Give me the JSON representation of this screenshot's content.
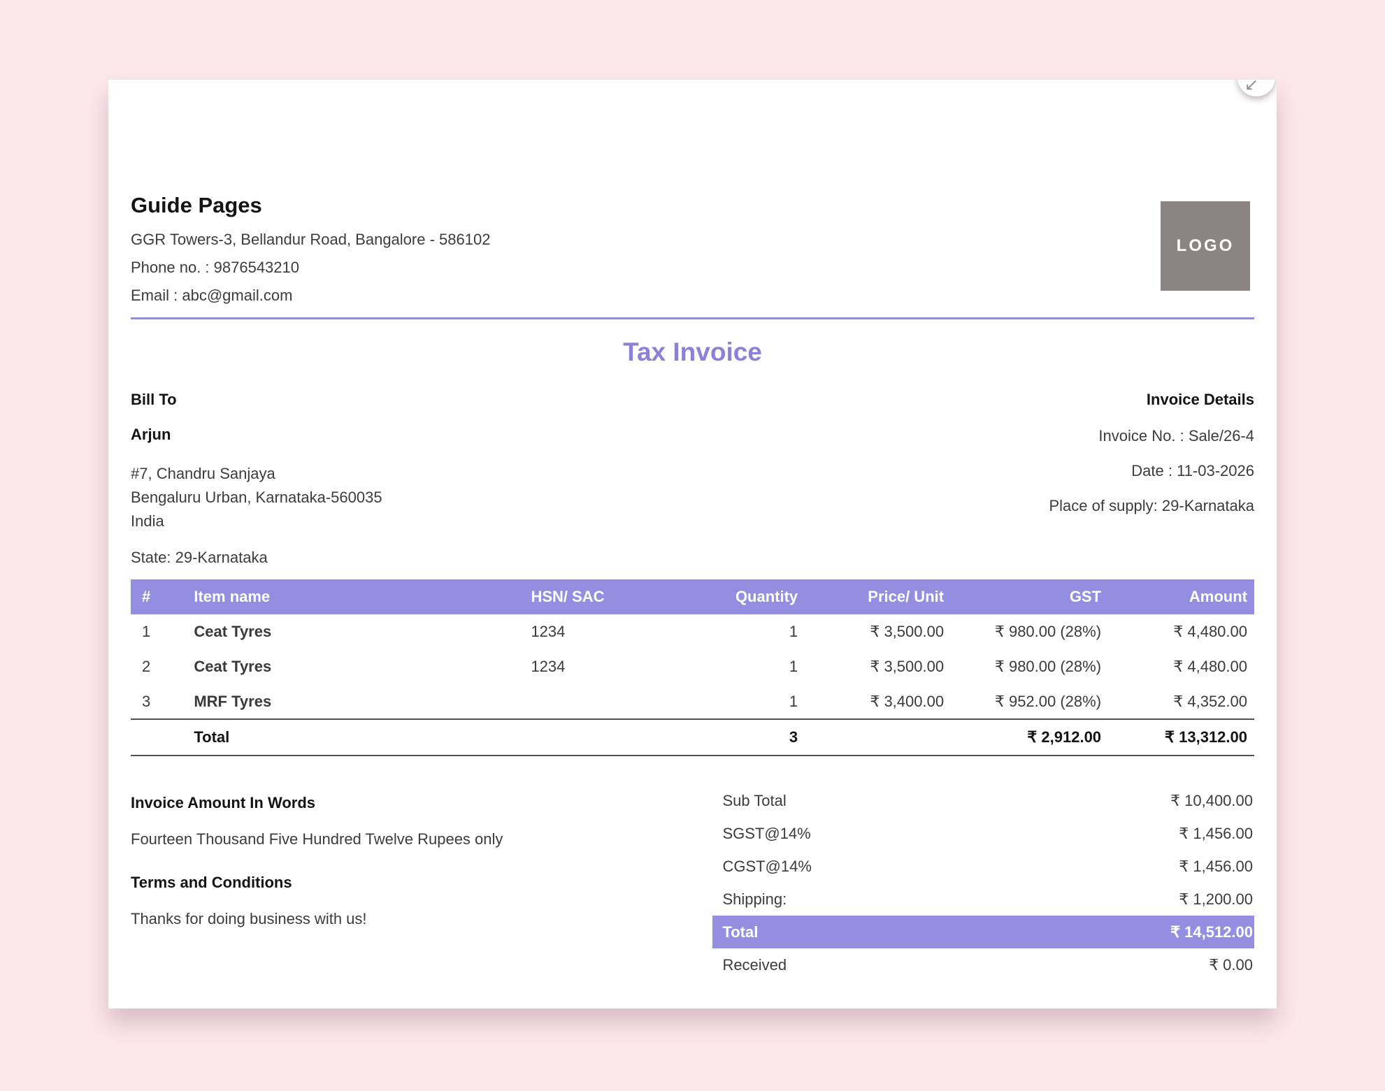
{
  "colors": {
    "accent": "#938ee0",
    "title_color": "#8c81da",
    "logo_bg": "#8b8484",
    "page_bg": "#fce7ec",
    "divider": "#918dd6"
  },
  "corner": {
    "collapse_icon": "↙"
  },
  "company": {
    "name": "Guide Pages",
    "address": "GGR Towers-3, Bellandur Road, Bangalore - 586102",
    "phone": "Phone no. : 9876543210",
    "email": "Email : abc@gmail.com",
    "logo_text": "LOGO"
  },
  "title": "Tax Invoice",
  "bill_to": {
    "heading": "Bill To",
    "name": "Arjun",
    "address_line1": "#7, Chandru Sanjaya",
    "address_line2": "Bengaluru Urban, Karnataka-560035",
    "address_line3": "India",
    "state": "State: 29-Karnataka"
  },
  "invoice_details": {
    "heading": "Invoice Details",
    "invoice_no": "Invoice No. : Sale/26-4",
    "date": "Date : 11-03-2026",
    "place_of_supply": "Place of supply: 29-Karnataka"
  },
  "items_table": {
    "columns": [
      "#",
      "Item name",
      "HSN/ SAC",
      "Quantity",
      "Price/ Unit",
      "GST",
      "Amount"
    ],
    "rows": [
      {
        "sno": "1",
        "name": "Ceat Tyres",
        "hsn": "1234",
        "qty": "1",
        "price": "₹ 3,500.00",
        "gst": "₹ 980.00 (28%)",
        "amount": "₹ 4,480.00"
      },
      {
        "sno": "2",
        "name": "Ceat Tyres",
        "hsn": "1234",
        "qty": "1",
        "price": "₹ 3,500.00",
        "gst": "₹ 980.00 (28%)",
        "amount": "₹ 4,480.00"
      },
      {
        "sno": "3",
        "name": "MRF Tyres",
        "hsn": "",
        "qty": "1",
        "price": "₹ 3,400.00",
        "gst": "₹ 952.00 (28%)",
        "amount": "₹ 4,352.00"
      }
    ],
    "total": {
      "label": "Total",
      "qty": "3",
      "gst": "₹ 2,912.00",
      "amount": "₹ 13,312.00"
    }
  },
  "amount_in_words": {
    "heading": "Invoice Amount In Words",
    "text": "Fourteen Thousand Five Hundred Twelve Rupees only"
  },
  "terms": {
    "heading": "Terms and Conditions",
    "text": "Thanks for doing business with us!"
  },
  "summary": {
    "rows": [
      {
        "label": "Sub Total",
        "value": "₹ 10,400.00"
      },
      {
        "label": "SGST@14%",
        "value": "₹ 1,456.00"
      },
      {
        "label": "CGST@14%",
        "value": "₹ 1,456.00"
      },
      {
        "label": "Shipping:",
        "value": "₹ 1,200.00"
      }
    ],
    "total": {
      "label": "Total",
      "value": "₹ 14,512.00"
    },
    "received": {
      "label": "Received",
      "value": "₹ 0.00"
    }
  }
}
